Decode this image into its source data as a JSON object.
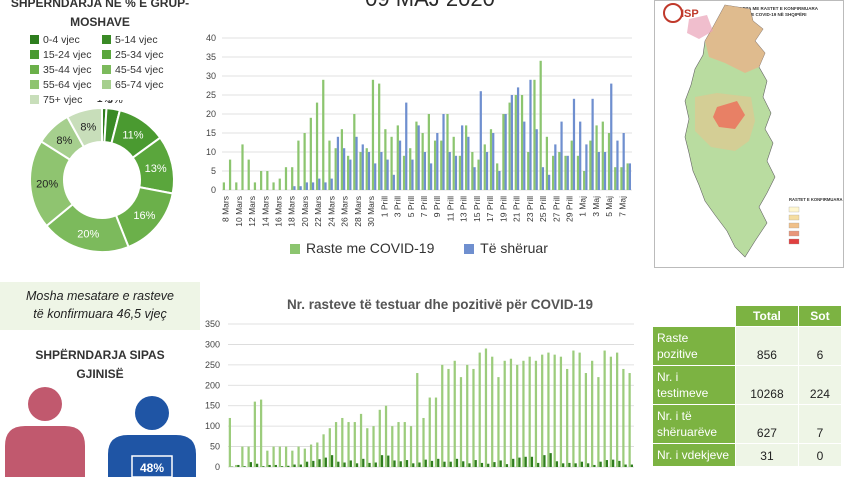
{
  "header": {
    "title": "09 MAJ 2020"
  },
  "age_section": {
    "title_line1": "SHPËRNDARJA NË % E GRUP-",
    "title_line2": "MOSHAVE",
    "legend": [
      {
        "label": "0-4 vjec",
        "color": "#2e7d1e"
      },
      {
        "label": "5-14 vjec",
        "color": "#3a8a26"
      },
      {
        "label": "15-24 vjec",
        "color": "#4a9a30"
      },
      {
        "label": "25-34 vjec",
        "color": "#5aa63c"
      },
      {
        "label": "35-44 vjec",
        "color": "#6bb04a"
      },
      {
        "label": "45-54 vjec",
        "color": "#7cba5c"
      },
      {
        "label": "55-64 vjec",
        "color": "#8fc470"
      },
      {
        "label": "65-74 vjec",
        "color": "#a6cf8e"
      },
      {
        "label": "75+ vjec",
        "color": "#c8deba"
      }
    ],
    "mean_age_line1": "Mosha mesatare e rasteve",
    "mean_age_line2": "të konfirmuara 46,5 vjeç"
  },
  "gender_section": {
    "title_line1": "SHPËRNDARJA SIPAS",
    "title_line2": "GJINISË",
    "male_pct": "48%"
  },
  "cases_chart": {
    "legend_cases": "Raste me COVID-19",
    "legend_recovered": "Të shëruar",
    "cases_color": "#8cc56f",
    "recovered_color": "#6f8fcf"
  },
  "tests_chart": {
    "title": "Nr. rasteve të testuar dhe pozitivë për COVID-19",
    "tests_color": "#9ccc7c",
    "positive_color": "#2f7d1e"
  },
  "map": {
    "title_line1": "HARTA ME RASTET E KONFIRMUARA",
    "title_line2": "ME COVID-19 NË SHQIPËRI",
    "legend_title": "RASTET E KONFIRMUARA",
    "logo": "ISP"
  },
  "stats_table": {
    "headers": [
      "",
      "Total",
      "Sot"
    ],
    "rows": [
      {
        "label": "Raste pozitive",
        "total": "856",
        "today": "6"
      },
      {
        "label": "Nr. i testimeve",
        "total": "10268",
        "today": "224"
      },
      {
        "label": "Nr. i të shëruarëve",
        "total": "627",
        "today": "7"
      },
      {
        "label": "Nr. i vdekjeve",
        "total": "31",
        "today": "0"
      }
    ]
  },
  "chart_data": [
    {
      "type": "pie",
      "title": "SHPËRNDARJA NË % E GRUP-MOSHAVE",
      "categories": [
        "0-4 vjec",
        "5-14 vjec",
        "15-24 vjec",
        "25-34 vjec",
        "35-44 vjec",
        "45-54 vjec",
        "55-64 vjec",
        "65-74 vjec",
        "75+ vjec"
      ],
      "values": [
        1,
        3,
        11,
        13,
        16,
        20,
        20,
        8,
        8
      ],
      "labels": [
        "1%",
        "3%",
        "11%",
        "13%",
        "16%",
        "20%",
        "20%",
        "8%",
        "8%"
      ]
    },
    {
      "type": "bar",
      "ylim": [
        0,
        40
      ],
      "yticks": [
        0,
        5,
        10,
        15,
        20,
        25,
        30,
        35,
        40
      ],
      "x_tick_labels": [
        "8 Mars",
        "10 Mars",
        "12 Mars",
        "14 Mars",
        "16 Mars",
        "18 Mars",
        "20 Mars",
        "22 Mars",
        "24 Mars",
        "26 Mars",
        "28 Mars",
        "30 Mars",
        "1 Prill",
        "3 Prill",
        "5 Prill",
        "7 Prill",
        "9 Prill",
        "11 Prill",
        "13 Prill",
        "15 Prill",
        "17 Prill",
        "19 Prill",
        "21 Prill",
        "23 Prill",
        "25 Prill",
        "27 Prill",
        "29 Prill",
        "1 Maj",
        "3 Maj",
        "5 Maj",
        "7 Maj"
      ],
      "series": [
        {
          "name": "Raste me COVID-19",
          "values": [
            2,
            8,
            2,
            12,
            8,
            2,
            5,
            5,
            2,
            3,
            6,
            6,
            13,
            15,
            19,
            23,
            29,
            13,
            11,
            16,
            9,
            20,
            10,
            11,
            29,
            28,
            16,
            14,
            17,
            9,
            11,
            18,
            15,
            20,
            13,
            13,
            20,
            14,
            9,
            17,
            10,
            8,
            12,
            16,
            7,
            20,
            23,
            25,
            25,
            10,
            29,
            34,
            14,
            9,
            10,
            9,
            13,
            9,
            5,
            13,
            17,
            18,
            15,
            6,
            6,
            7
          ]
        },
        {
          "name": "Të shëruar",
          "values": [
            0,
            0,
            0,
            0,
            0,
            0,
            0,
            0,
            0,
            0,
            0,
            1,
            1,
            2,
            2,
            3,
            2,
            3,
            14,
            11,
            8,
            14,
            12,
            10,
            7,
            10,
            8,
            4,
            13,
            23,
            8,
            17,
            10,
            7,
            15,
            20,
            10,
            9,
            17,
            14,
            6,
            26,
            10,
            15,
            5,
            20,
            25,
            27,
            18,
            29,
            16,
            6,
            4,
            12,
            18,
            9,
            24,
            18,
            12,
            24,
            10,
            10,
            28,
            13,
            15,
            7
          ]
        }
      ]
    },
    {
      "type": "bar",
      "title": "Nr. rasteve të testuar dhe pozitivë për COVID-19",
      "ylim": [
        0,
        350
      ],
      "yticks": [
        0,
        50,
        100,
        150,
        200,
        250,
        300,
        350
      ],
      "series": [
        {
          "name": "Testuar",
          "values": [
            120,
            5,
            50,
            50,
            160,
            165,
            40,
            50,
            50,
            50,
            40,
            50,
            45,
            55,
            60,
            80,
            95,
            110,
            120,
            110,
            110,
            130,
            95,
            100,
            140,
            150,
            100,
            110,
            110,
            100,
            230,
            120,
            170,
            170,
            250,
            240,
            260,
            220,
            250,
            240,
            280,
            290,
            270,
            220,
            260,
            265,
            250,
            260,
            270,
            260,
            275,
            280,
            275,
            270,
            240,
            285,
            280,
            230,
            260,
            220,
            285,
            270,
            280,
            240,
            230
          ]
        },
        {
          "name": "Pozitivë",
          "values": [
            1,
            5,
            2,
            12,
            8,
            2,
            5,
            5,
            2,
            3,
            6,
            6,
            13,
            15,
            19,
            23,
            29,
            13,
            11,
            16,
            9,
            20,
            10,
            11,
            29,
            28,
            16,
            14,
            17,
            9,
            11,
            18,
            15,
            20,
            13,
            13,
            20,
            14,
            9,
            17,
            10,
            8,
            12,
            16,
            7,
            20,
            23,
            25,
            25,
            10,
            29,
            34,
            14,
            9,
            10,
            9,
            13,
            9,
            5,
            13,
            17,
            18,
            15,
            6,
            6
          ]
        }
      ]
    }
  ]
}
